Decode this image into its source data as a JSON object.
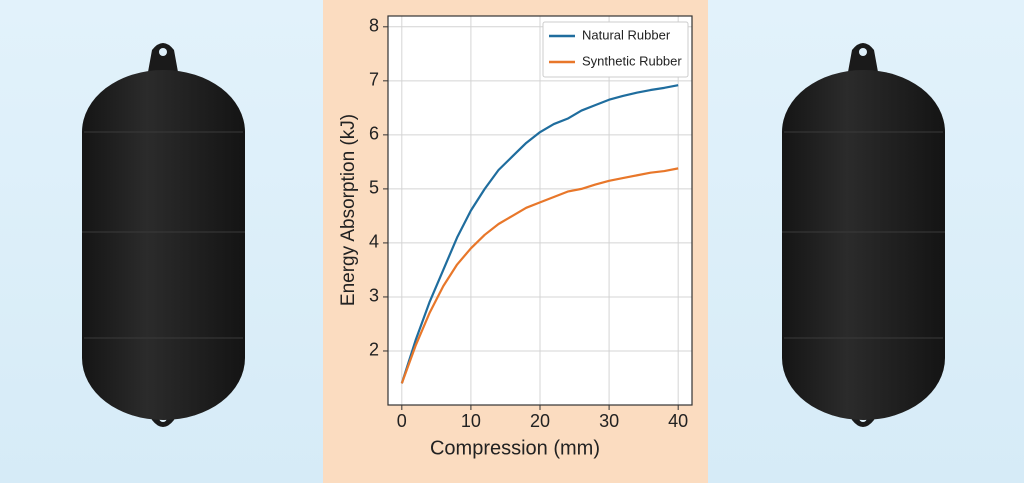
{
  "chart_data": {
    "type": "line",
    "x_label": "Compression (mm)",
    "y_label": "Energy Absorption (kJ)",
    "x": [
      0,
      2,
      4,
      6,
      8,
      10,
      12,
      14,
      16,
      18,
      20,
      22,
      24,
      26,
      28,
      30,
      32,
      34,
      36,
      38,
      40
    ],
    "series": [
      {
        "name": "Natural Rubber",
        "color": "#1f6d9e",
        "values": [
          1.4,
          2.2,
          2.9,
          3.5,
          4.1,
          4.6,
          5.0,
          5.35,
          5.6,
          5.85,
          6.05,
          6.2,
          6.3,
          6.45,
          6.55,
          6.65,
          6.72,
          6.78,
          6.83,
          6.87,
          6.92
        ]
      },
      {
        "name": "Synthetic Rubber",
        "color": "#e8772a",
        "values": [
          1.4,
          2.1,
          2.7,
          3.2,
          3.6,
          3.9,
          4.15,
          4.35,
          4.5,
          4.65,
          4.75,
          4.85,
          4.95,
          5.0,
          5.08,
          5.15,
          5.2,
          5.25,
          5.3,
          5.33,
          5.38
        ]
      }
    ],
    "xlim": [
      -2,
      42
    ],
    "xticks": [
      0,
      10,
      20,
      30,
      40
    ],
    "ylim": [
      1,
      8.2
    ],
    "yticks": [
      2,
      3,
      4,
      5,
      6,
      7,
      8
    ],
    "grid": true,
    "legend": "upper-right"
  }
}
